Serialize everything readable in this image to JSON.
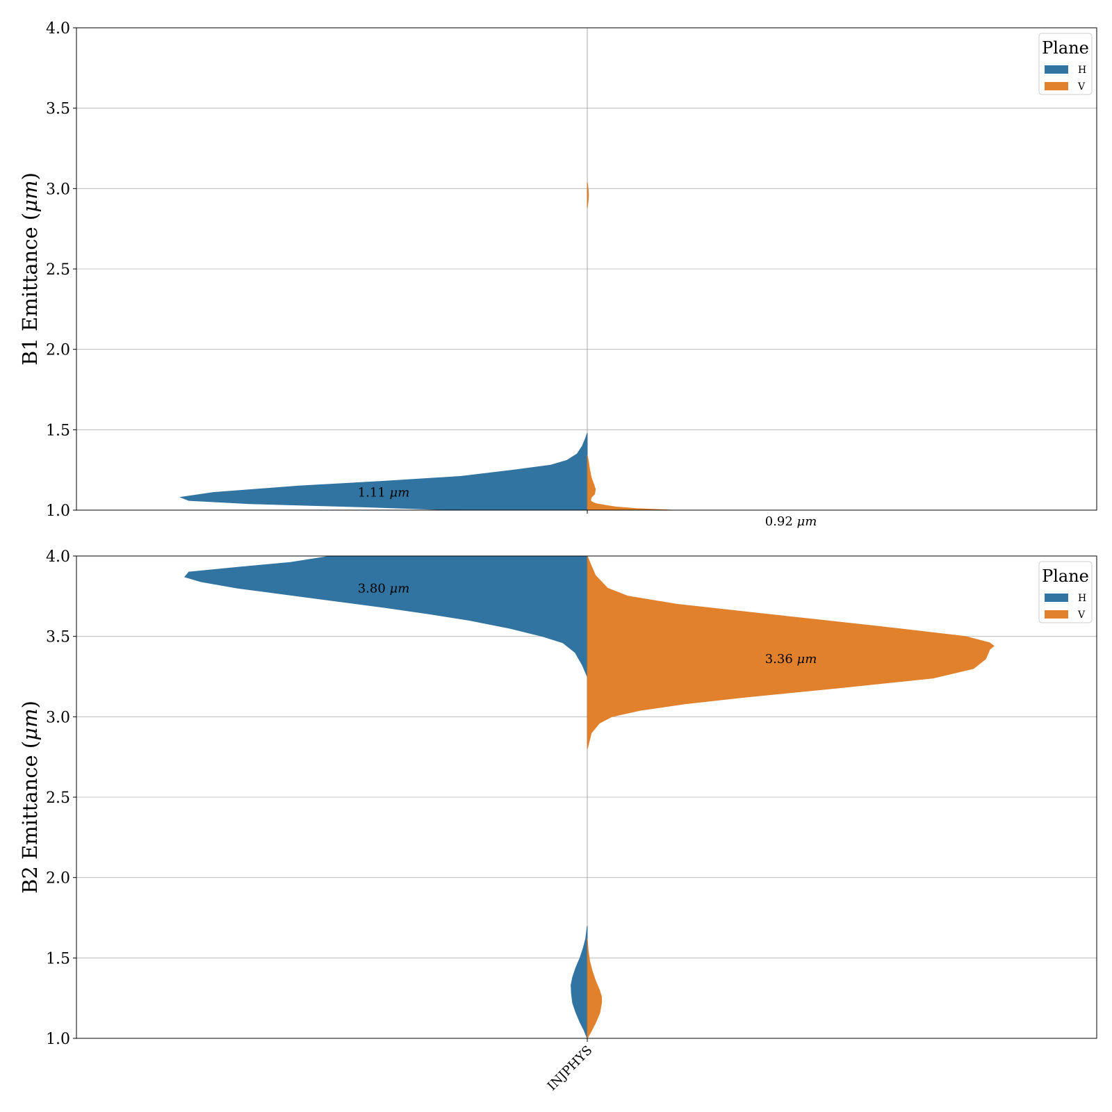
{
  "chart_data": [
    {
      "type": "violin",
      "ylabel": "B1 Emittance (μm)",
      "ylim": [
        1.0,
        4.0
      ],
      "yticks": [
        1.0,
        1.5,
        2.0,
        2.5,
        3.0,
        3.5,
        4.0
      ],
      "categories": [
        "INJPHYS"
      ],
      "grid": true,
      "legend": {
        "title": "Plane",
        "placement": "top-right",
        "entries": [
          {
            "label": "H",
            "color": "#3274a1"
          },
          {
            "label": "V",
            "color": "#e1812c"
          }
        ]
      },
      "annotations": [
        {
          "value": "1.11",
          "unit": "μm",
          "side": "H",
          "y": 1.11
        },
        {
          "value": "0.92",
          "unit": "μm",
          "side": "V",
          "y": 0.93
        }
      ],
      "series": [
        {
          "name": "H",
          "side": "left",
          "color": "#3274a1",
          "y": [
            1.0,
            1.02,
            1.04,
            1.06,
            1.08,
            1.11,
            1.15,
            1.18,
            1.21,
            1.25,
            1.28,
            1.31,
            1.35,
            1.4,
            1.45,
            1.48
          ],
          "density": [
            0.32,
            0.55,
            0.83,
            0.98,
            1.0,
            0.92,
            0.71,
            0.5,
            0.31,
            0.18,
            0.09,
            0.05,
            0.025,
            0.012,
            0.004,
            0.0
          ]
        },
        {
          "name": "V",
          "side": "right",
          "color": "#e1812c",
          "y": [
            1.0,
            1.01,
            1.02,
            1.03,
            1.04,
            1.05,
            1.06,
            1.08,
            1.1,
            1.13,
            1.16,
            1.2,
            1.25,
            1.3,
            1.34
          ],
          "density": [
            0.21,
            0.12,
            0.07,
            0.045,
            0.022,
            0.012,
            0.008,
            0.01,
            0.018,
            0.02,
            0.016,
            0.01,
            0.006,
            0.003,
            0.0
          ]
        },
        {
          "name": "V",
          "side": "right",
          "color": "#e1812c",
          "y": [
            2.88,
            2.92,
            2.96,
            3.0,
            3.04
          ],
          "density": [
            0.0,
            0.002,
            0.003,
            0.002,
            0.0
          ]
        }
      ]
    },
    {
      "type": "violin",
      "ylabel": "B2 Emittance (μm)",
      "ylim": [
        1.0,
        4.0
      ],
      "yticks": [
        1.0,
        1.5,
        2.0,
        2.5,
        3.0,
        3.5,
        4.0
      ],
      "categories": [
        "INJPHYS"
      ],
      "grid": true,
      "legend": {
        "title": "Plane",
        "placement": "top-right",
        "entries": [
          {
            "label": "H",
            "color": "#3274a1"
          },
          {
            "label": "V",
            "color": "#e1812c"
          }
        ]
      },
      "annotations": [
        {
          "value": "3.80",
          "unit": "μm",
          "side": "H",
          "y": 3.8
        },
        {
          "value": "3.36",
          "unit": "μm",
          "side": "V",
          "y": 3.36
        }
      ],
      "series": [
        {
          "name": "H",
          "side": "left",
          "color": "#3274a1",
          "y": [
            3.25,
            3.32,
            3.4,
            3.46,
            3.5,
            3.55,
            3.6,
            3.64,
            3.68,
            3.72,
            3.76,
            3.8,
            3.84,
            3.87,
            3.9,
            3.93,
            3.96,
            4.0
          ],
          "density": [
            0.0,
            0.012,
            0.03,
            0.06,
            0.11,
            0.19,
            0.29,
            0.39,
            0.5,
            0.62,
            0.74,
            0.86,
            0.95,
            0.99,
            0.98,
            0.86,
            0.73,
            0.63
          ]
        },
        {
          "name": "V",
          "side": "right",
          "color": "#e1812c",
          "y": [
            2.8,
            2.9,
            2.96,
            3.0,
            3.04,
            3.08,
            3.12,
            3.18,
            3.24,
            3.3,
            3.36,
            3.42,
            3.44,
            3.46,
            3.5,
            3.55,
            3.6,
            3.65,
            3.7,
            3.75,
            3.8,
            3.88,
            3.95,
            4.0
          ],
          "density": [
            0.0,
            0.01,
            0.03,
            0.06,
            0.13,
            0.24,
            0.38,
            0.62,
            0.85,
            0.95,
            0.98,
            0.99,
            1.0,
            0.99,
            0.93,
            0.76,
            0.58,
            0.4,
            0.22,
            0.1,
            0.05,
            0.02,
            0.008,
            0.0
          ]
        },
        {
          "name": "H",
          "side": "left",
          "color": "#3274a1",
          "y": [
            1.0,
            1.05,
            1.1,
            1.16,
            1.22,
            1.28,
            1.33,
            1.38,
            1.44,
            1.5,
            1.56,
            1.62,
            1.7
          ],
          "density": [
            0.0,
            0.008,
            0.018,
            0.028,
            0.036,
            0.039,
            0.04,
            0.036,
            0.028,
            0.018,
            0.01,
            0.004,
            0.0
          ]
        },
        {
          "name": "V",
          "side": "right",
          "color": "#e1812c",
          "y": [
            1.0,
            1.04,
            1.1,
            1.16,
            1.22,
            1.26,
            1.3,
            1.36,
            1.42,
            1.48,
            1.55,
            1.62
          ],
          "density": [
            0.0,
            0.009,
            0.021,
            0.031,
            0.035,
            0.035,
            0.03,
            0.02,
            0.012,
            0.006,
            0.002,
            0.0
          ]
        }
      ]
    }
  ]
}
